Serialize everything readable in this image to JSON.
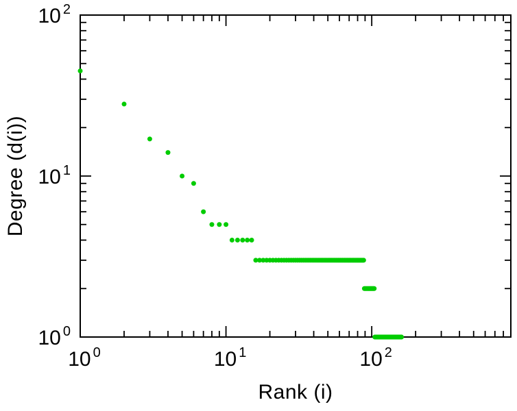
{
  "chart_data": {
    "type": "scatter",
    "title": "",
    "xlabel": "Rank (i)",
    "ylabel": "Degree (d(i))",
    "xscale": "log",
    "yscale": "log",
    "xlim": [
      1,
      900
    ],
    "ylim": [
      1,
      100
    ],
    "grid": false,
    "legend": "none",
    "axis_color": "#000000",
    "background_color": "#ffffff",
    "tick_label_format": "power-of-10",
    "x_major_ticks": [
      1,
      10,
      100
    ],
    "y_major_ticks": [
      1,
      10,
      100
    ],
    "marker": {
      "shape": "circle",
      "color": "#00cc00",
      "radius_px": 3.5
    },
    "series": [
      {
        "name": "degree_vs_rank",
        "points": [
          [
            1,
            45
          ],
          [
            2,
            28
          ],
          [
            3,
            17
          ],
          [
            4,
            14
          ],
          [
            5,
            10
          ],
          [
            6,
            9
          ],
          [
            7,
            6
          ]
        ],
        "runs": [
          {
            "degree": 5,
            "rank_start": 8,
            "rank_end": 10
          },
          {
            "degree": 4,
            "rank_start": 11,
            "rank_end": 15
          },
          {
            "degree": 3,
            "rank_start": 16,
            "rank_end": 88
          },
          {
            "degree": 2,
            "rank_start": 89,
            "rank_end": 104
          },
          {
            "degree": 1,
            "rank_start": 105,
            "rank_end": 160
          }
        ]
      }
    ]
  }
}
